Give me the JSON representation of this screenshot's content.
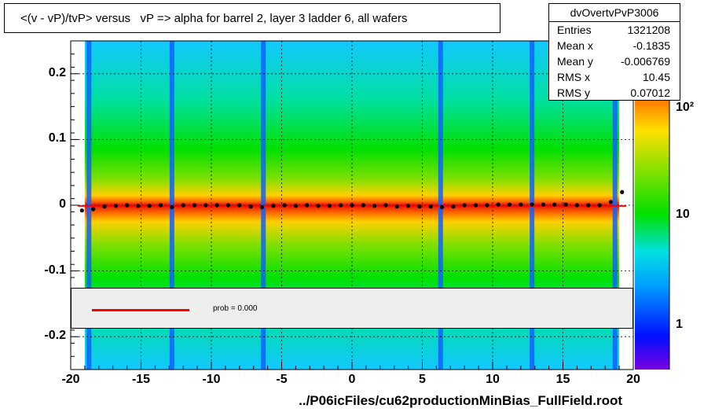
{
  "title": "<(v - vP)/tvP> versus   vP => alpha for barrel 2, layer 3 ladder 6, all wafers",
  "stats": {
    "name": "dvOvertvPvP3006",
    "rows": [
      {
        "label": "Entries",
        "value": "1321208"
      },
      {
        "label": "Mean x",
        "value": "-0.1835"
      },
      {
        "label": "Mean y",
        "value": "-0.006769"
      },
      {
        "label": "RMS x",
        "value": "10.45"
      },
      {
        "label": "RMS y",
        "value": "0.07012"
      }
    ]
  },
  "legend": {
    "fit_label": "prob = 0.000",
    "fit_color": "#ff0000"
  },
  "footer": "../P06icFiles/cu62productionMinBias_FullField.root",
  "chart_data": {
    "type": "heatmap",
    "xlim": [
      -20,
      20
    ],
    "ylim": [
      -0.25,
      0.25
    ],
    "x_ticks": [
      "-20",
      "-15",
      "-10",
      "-5",
      "0",
      "5",
      "10",
      "15",
      "20"
    ],
    "y_ticks": [
      "0.2",
      "0.1",
      "0",
      "-0.1",
      "-0.2"
    ],
    "z_scale": "log",
    "z_ticks": [
      "1",
      "10",
      "10²"
    ],
    "grid": true,
    "gap_columns_x": [
      -18.7,
      -12.8,
      -6.3,
      6.3,
      12.8,
      18.7
    ],
    "profile": {
      "x": [
        -19.2,
        -18.4,
        -17.6,
        -16.8,
        -16.0,
        -15.2,
        -14.4,
        -13.6,
        -12.8,
        -12.0,
        -11.2,
        -10.4,
        -9.6,
        -8.8,
        -8.0,
        -7.2,
        -6.4,
        -5.6,
        -4.8,
        -4.0,
        -3.2,
        -2.4,
        -1.6,
        -0.8,
        0.0,
        0.8,
        1.6,
        2.4,
        3.2,
        4.0,
        4.8,
        5.6,
        6.4,
        7.2,
        8.0,
        8.8,
        9.6,
        10.4,
        11.2,
        12.0,
        12.8,
        13.6,
        14.4,
        15.2,
        16.0,
        16.8,
        17.6,
        18.4,
        19.2
      ],
      "y": [
        -0.008,
        -0.006,
        -0.002,
        -0.001,
        0.0,
        -0.001,
        -0.001,
        0.0,
        -0.003,
        0.0,
        0.0,
        0.0,
        0.0,
        0.0,
        0.0,
        -0.002,
        -0.003,
        -0.001,
        0.0,
        -0.001,
        0.0,
        -0.001,
        -0.001,
        0.0,
        0.0,
        0.0,
        -0.001,
        0.0,
        -0.002,
        -0.001,
        -0.002,
        -0.002,
        -0.003,
        -0.002,
        0.0,
        0.0,
        0.0,
        0.001,
        0.001,
        0.001,
        0.001,
        0.001,
        0.001,
        0.001,
        0.0,
        0.0,
        0.0,
        0.005,
        0.02
      ]
    },
    "fit_line": {
      "y": -0.001
    }
  }
}
